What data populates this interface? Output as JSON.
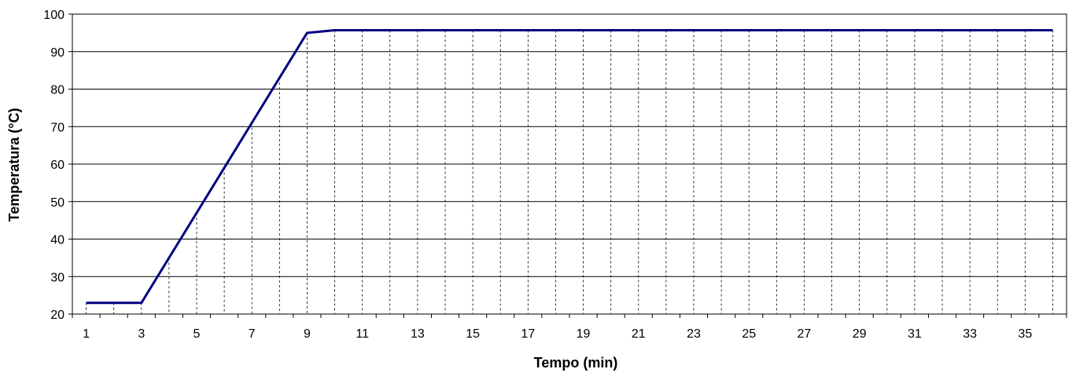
{
  "chart_data": {
    "type": "line",
    "xlabel": "Tempo (min)",
    "ylabel": "Temperatura (°C)",
    "ylim": [
      20,
      100
    ],
    "xlim": [
      1,
      36
    ],
    "yticks": [
      20,
      30,
      40,
      50,
      60,
      70,
      80,
      90,
      100
    ],
    "xticks": [
      1,
      3,
      5,
      7,
      9,
      11,
      13,
      15,
      17,
      19,
      21,
      23,
      25,
      27,
      29,
      31,
      33,
      35
    ],
    "grid": {
      "horizontal": "solid",
      "vertical": "dashed"
    },
    "line_color": "#000080",
    "series": [
      {
        "x": [
          1,
          2,
          3,
          4,
          5,
          6,
          7,
          8,
          9,
          10,
          11,
          12,
          13,
          14,
          15,
          16,
          17,
          18,
          19,
          20,
          21,
          22,
          23,
          24,
          25,
          26,
          27,
          28,
          29,
          30,
          31,
          32,
          33,
          34,
          35,
          36
        ],
        "values": [
          23,
          23,
          23,
          35,
          47,
          59,
          71,
          83,
          95,
          95.7,
          95.7,
          95.7,
          95.7,
          95.7,
          95.7,
          95.7,
          95.7,
          95.7,
          95.7,
          95.7,
          95.7,
          95.7,
          95.7,
          95.7,
          95.7,
          95.7,
          95.7,
          95.7,
          95.7,
          95.7,
          95.7,
          95.7,
          95.7,
          95.7,
          95.7,
          95.7
        ]
      }
    ]
  }
}
